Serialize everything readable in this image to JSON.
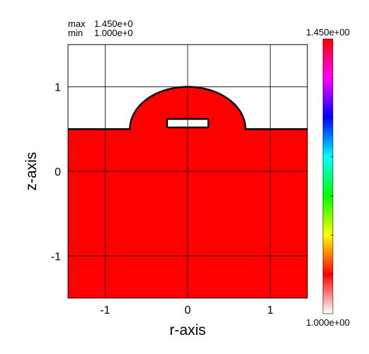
{
  "stats": {
    "max_label": "max",
    "max_value": "1.450e+0",
    "min_label": "min",
    "min_value": "1.000e+0"
  },
  "chart_data": {
    "type": "heatmap",
    "title": "",
    "xlabel": "r-axis",
    "ylabel": "z-axis",
    "xlim": [
      -1.45,
      1.45
    ],
    "ylim": [
      -1.5,
      1.5
    ],
    "xticks": [
      -1,
      0,
      1
    ],
    "yticks": [
      -1,
      0,
      1
    ],
    "xtick_labels": [
      "-1",
      "0",
      "1"
    ],
    "ytick_labels": [
      "-1",
      "0",
      "1"
    ],
    "grid": true,
    "colorbar": {
      "max_label": "1.450e+00",
      "min_label": "1.000e+00",
      "min": 1.0,
      "max": 1.45,
      "colors": [
        "#ff0000",
        "#ff00ff",
        "#0000ff",
        "#00ffff",
        "#00ff00",
        "#ffff00",
        "#ff0000",
        "#ffffff"
      ]
    },
    "region": {
      "value": 1.45,
      "color": "#ff0000",
      "flat_top_z": 0.5,
      "dome_center": [
        0,
        0.5
      ],
      "dome_radius": 0.5,
      "dome_half_width": 0.7,
      "hole": {
        "r": [
          -0.25,
          0.25
        ],
        "z": [
          0.52,
          0.62
        ]
      }
    }
  }
}
